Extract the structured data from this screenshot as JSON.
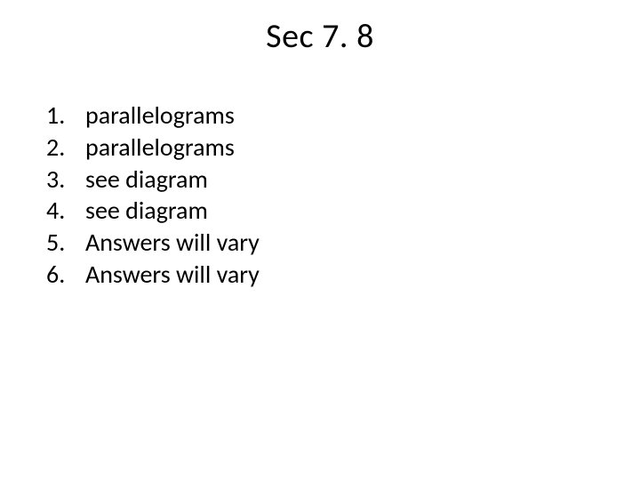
{
  "slide": {
    "title": "Sec 7. 8",
    "title_fontsize": 38,
    "title_color": "#000000",
    "background_color": "#ffffff",
    "list_fontsize": 28,
    "list_color": "#000000",
    "font_family": "Calibri",
    "items": [
      {
        "number": "1.",
        "text": "parallelograms"
      },
      {
        "number": "2.",
        "text": "parallelograms"
      },
      {
        "number": "3.",
        "text": "see diagram"
      },
      {
        "number": "4.",
        "text": "see diagram"
      },
      {
        "number": "5.",
        "text": "Answers will vary"
      },
      {
        "number": "6.",
        "text": "Answers will vary"
      }
    ]
  }
}
